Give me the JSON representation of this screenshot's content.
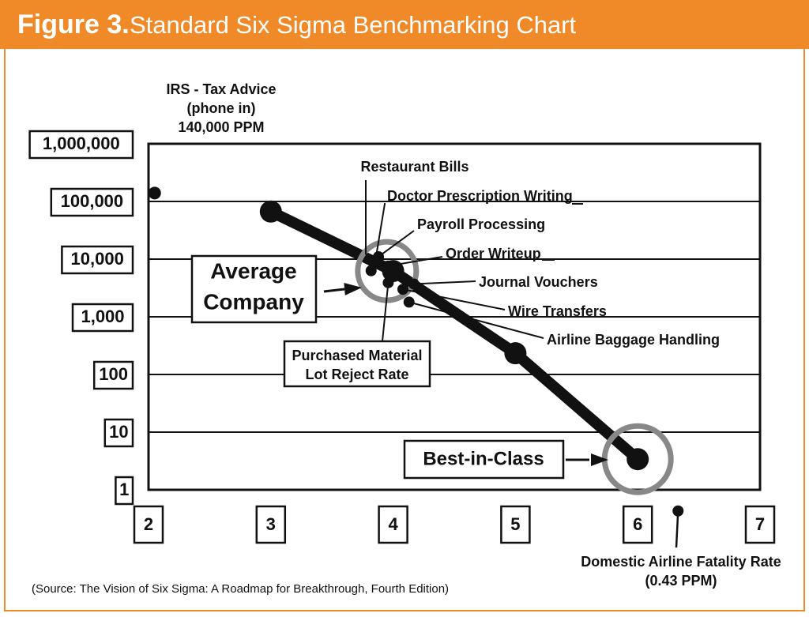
{
  "header": {
    "figure_label": "Figure 3.",
    "title": "Standard Six Sigma Benchmarking Chart"
  },
  "source_note": "(Source: The Vision of Six Sigma: A Roadmap for Breakthrough, Fourth Edition)",
  "colors": {
    "title_bar": "#f08a28",
    "frame": "#f08a28",
    "ink": "#111111",
    "highlight_ring": "#888888"
  },
  "chart_data": {
    "type": "line",
    "title": "Standard Six Sigma Benchmarking Chart",
    "xlabel": "",
    "ylabel": "",
    "y_scale": "log",
    "xlim": [
      2,
      7
    ],
    "ylim": [
      1,
      1000000
    ],
    "x_ticks": [
      2,
      3,
      4,
      5,
      6,
      7
    ],
    "x_tick_labels": [
      "2",
      "3",
      "4",
      "5",
      "6",
      "7"
    ],
    "y_ticks": [
      1,
      10,
      100,
      1000,
      10000,
      100000,
      1000000
    ],
    "y_tick_labels": [
      "1",
      "10",
      "100",
      "1,000",
      "10,000",
      "100,000",
      "1,000,000"
    ],
    "grid": true,
    "series": [
      {
        "x": [
          3,
          4,
          5,
          6
        ],
        "y": [
          66800,
          6210,
          233,
          3.4
        ]
      }
    ],
    "points": [
      {
        "label": "IRS - Tax Advice",
        "label_lines": [
          "IRS - Tax Advice",
          "(phone in)",
          "140,000 PPM"
        ],
        "x": 2.05,
        "y": 140000
      },
      {
        "label": "Restaurant Bills",
        "x": 3.85,
        "y": 9500
      },
      {
        "label": "Doctor Prescription Writing",
        "x": 3.82,
        "y": 6300
      },
      {
        "label": "Payroll Processing",
        "x": 3.88,
        "y": 11000
      },
      {
        "label": "Order Writeup",
        "x": 3.96,
        "y": 7600
      },
      {
        "label": "Journal Vouchers",
        "x": 4.17,
        "y": 3700
      },
      {
        "label": "Wire Transfers",
        "x": 4.08,
        "y": 3000
      },
      {
        "label": "Airline Baggage Handling",
        "x": 4.13,
        "y": 1800
      },
      {
        "label": "Purchased Material Lot Reject Rate",
        "label_lines": [
          "Purchased Material",
          "Lot Reject Rate"
        ],
        "x": 3.96,
        "y": 3900
      },
      {
        "label": "Domestic Airline Fatality Rate",
        "label_lines": [
          "Domestic Airline Fatality Rate",
          "(0.43 PPM)"
        ],
        "x": 6.33,
        "y": 0.43
      }
    ],
    "annotations": [
      {
        "label": "Average Company",
        "label_lines": [
          "Average",
          "Company"
        ],
        "x": 3.95,
        "y": 6210
      },
      {
        "label": "Best-in-Class",
        "label_lines": [
          "Best-in-Class"
        ],
        "x": 6.0,
        "y": 3.4
      }
    ]
  }
}
